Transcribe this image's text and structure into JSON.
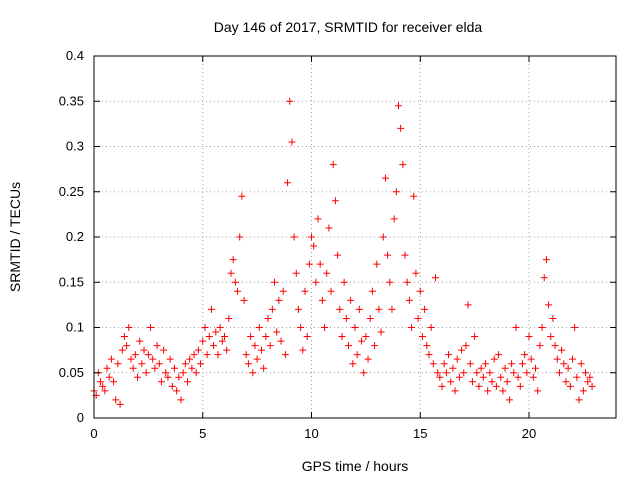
{
  "chart_data": {
    "type": "scatter",
    "title": "Day 146 of 2017, SRMTID for receiver elda",
    "xlabel": "GPS time / hours",
    "ylabel": "SRMTID / TECUs",
    "xlim": [
      0,
      24
    ],
    "ylim": [
      0,
      0.4
    ],
    "x_ticks": [
      0,
      5,
      10,
      15,
      20
    ],
    "x_tick_labels": [
      "0",
      "5",
      "10",
      "15",
      "20"
    ],
    "y_ticks": [
      0,
      0.05,
      0.1,
      0.15,
      0.2,
      0.25,
      0.3,
      0.35,
      0.4
    ],
    "y_tick_labels": [
      "0",
      "0.05",
      "0.1",
      "0.15",
      "0.2",
      "0.25",
      "0.3",
      "0.35",
      "0.4"
    ],
    "grid": true,
    "marker": "+",
    "color": "#ff0000",
    "series": [
      {
        "name": "SRMTID",
        "points": [
          [
            0.0,
            0.03
          ],
          [
            0.1,
            0.025
          ],
          [
            0.2,
            0.05
          ],
          [
            0.3,
            0.04
          ],
          [
            0.4,
            0.035
          ],
          [
            0.5,
            0.03
          ],
          [
            0.6,
            0.055
          ],
          [
            0.7,
            0.045
          ],
          [
            0.8,
            0.065
          ],
          [
            0.9,
            0.04
          ],
          [
            1.0,
            0.02
          ],
          [
            1.1,
            0.06
          ],
          [
            1.2,
            0.015
          ],
          [
            1.3,
            0.075
          ],
          [
            1.4,
            0.09
          ],
          [
            1.5,
            0.08
          ],
          [
            1.6,
            0.1
          ],
          [
            1.7,
            0.065
          ],
          [
            1.8,
            0.055
          ],
          [
            1.9,
            0.07
          ],
          [
            2.0,
            0.045
          ],
          [
            2.1,
            0.085
          ],
          [
            2.2,
            0.06
          ],
          [
            2.3,
            0.075
          ],
          [
            2.4,
            0.05
          ],
          [
            2.5,
            0.07
          ],
          [
            2.6,
            0.1
          ],
          [
            2.7,
            0.065
          ],
          [
            2.8,
            0.055
          ],
          [
            2.9,
            0.08
          ],
          [
            3.0,
            0.06
          ],
          [
            3.1,
            0.04
          ],
          [
            3.2,
            0.075
          ],
          [
            3.3,
            0.05
          ],
          [
            3.4,
            0.045
          ],
          [
            3.5,
            0.065
          ],
          [
            3.6,
            0.035
          ],
          [
            3.7,
            0.055
          ],
          [
            3.8,
            0.03
          ],
          [
            3.9,
            0.045
          ],
          [
            4.0,
            0.02
          ],
          [
            4.1,
            0.05
          ],
          [
            4.2,
            0.06
          ],
          [
            4.3,
            0.04
          ],
          [
            4.4,
            0.065
          ],
          [
            4.5,
            0.055
          ],
          [
            4.6,
            0.07
          ],
          [
            4.7,
            0.05
          ],
          [
            4.8,
            0.075
          ],
          [
            4.9,
            0.06
          ],
          [
            5.0,
            0.085
          ],
          [
            5.1,
            0.1
          ],
          [
            5.2,
            0.07
          ],
          [
            5.3,
            0.09
          ],
          [
            5.4,
            0.12
          ],
          [
            5.5,
            0.08
          ],
          [
            5.6,
            0.095
          ],
          [
            5.7,
            0.07
          ],
          [
            5.8,
            0.1
          ],
          [
            5.9,
            0.085
          ],
          [
            6.0,
            0.09
          ],
          [
            6.1,
            0.075
          ],
          [
            6.2,
            0.11
          ],
          [
            6.3,
            0.16
          ],
          [
            6.4,
            0.175
          ],
          [
            6.5,
            0.15
          ],
          [
            6.6,
            0.14
          ],
          [
            6.7,
            0.2
          ],
          [
            6.8,
            0.245
          ],
          [
            6.9,
            0.13
          ],
          [
            7.0,
            0.07
          ],
          [
            7.1,
            0.06
          ],
          [
            7.2,
            0.09
          ],
          [
            7.3,
            0.05
          ],
          [
            7.4,
            0.08
          ],
          [
            7.5,
            0.065
          ],
          [
            7.6,
            0.1
          ],
          [
            7.7,
            0.075
          ],
          [
            7.8,
            0.055
          ],
          [
            7.9,
            0.09
          ],
          [
            8.0,
            0.11
          ],
          [
            8.1,
            0.08
          ],
          [
            8.2,
            0.12
          ],
          [
            8.3,
            0.15
          ],
          [
            8.4,
            0.095
          ],
          [
            8.5,
            0.13
          ],
          [
            8.6,
            0.085
          ],
          [
            8.7,
            0.14
          ],
          [
            8.8,
            0.07
          ],
          [
            8.9,
            0.26
          ],
          [
            9.0,
            0.35
          ],
          [
            9.1,
            0.305
          ],
          [
            9.2,
            0.2
          ],
          [
            9.3,
            0.16
          ],
          [
            9.4,
            0.12
          ],
          [
            9.5,
            0.1
          ],
          [
            9.6,
            0.075
          ],
          [
            9.7,
            0.14
          ],
          [
            9.8,
            0.09
          ],
          [
            9.9,
            0.17
          ],
          [
            10.0,
            0.2
          ],
          [
            10.1,
            0.19
          ],
          [
            10.2,
            0.15
          ],
          [
            10.3,
            0.22
          ],
          [
            10.4,
            0.17
          ],
          [
            10.5,
            0.13
          ],
          [
            10.6,
            0.1
          ],
          [
            10.7,
            0.16
          ],
          [
            10.8,
            0.21
          ],
          [
            10.9,
            0.14
          ],
          [
            11.0,
            0.28
          ],
          [
            11.1,
            0.24
          ],
          [
            11.2,
            0.18
          ],
          [
            11.3,
            0.12
          ],
          [
            11.4,
            0.09
          ],
          [
            11.5,
            0.15
          ],
          [
            11.6,
            0.11
          ],
          [
            11.7,
            0.08
          ],
          [
            11.8,
            0.13
          ],
          [
            11.9,
            0.06
          ],
          [
            12.0,
            0.1
          ],
          [
            12.1,
            0.07
          ],
          [
            12.2,
            0.12
          ],
          [
            12.3,
            0.085
          ],
          [
            12.4,
            0.05
          ],
          [
            12.5,
            0.09
          ],
          [
            12.6,
            0.065
          ],
          [
            12.7,
            0.11
          ],
          [
            12.8,
            0.14
          ],
          [
            12.9,
            0.08
          ],
          [
            13.0,
            0.17
          ],
          [
            13.1,
            0.12
          ],
          [
            13.2,
            0.095
          ],
          [
            13.3,
            0.2
          ],
          [
            13.4,
            0.265
          ],
          [
            13.5,
            0.18
          ],
          [
            13.6,
            0.15
          ],
          [
            13.7,
            0.12
          ],
          [
            13.8,
            0.22
          ],
          [
            13.9,
            0.25
          ],
          [
            14.0,
            0.345
          ],
          [
            14.1,
            0.32
          ],
          [
            14.2,
            0.28
          ],
          [
            14.3,
            0.18
          ],
          [
            14.4,
            0.15
          ],
          [
            14.5,
            0.13
          ],
          [
            14.6,
            0.1
          ],
          [
            14.7,
            0.245
          ],
          [
            14.8,
            0.16
          ],
          [
            14.9,
            0.11
          ],
          [
            15.0,
            0.14
          ],
          [
            15.1,
            0.09
          ],
          [
            15.2,
            0.12
          ],
          [
            15.3,
            0.08
          ],
          [
            15.4,
            0.07
          ],
          [
            15.5,
            0.1
          ],
          [
            15.6,
            0.06
          ],
          [
            15.7,
            0.155
          ],
          [
            15.8,
            0.05
          ],
          [
            15.9,
            0.045
          ],
          [
            16.0,
            0.035
          ],
          [
            16.1,
            0.06
          ],
          [
            16.2,
            0.05
          ],
          [
            16.3,
            0.07
          ],
          [
            16.4,
            0.04
          ],
          [
            16.5,
            0.055
          ],
          [
            16.6,
            0.03
          ],
          [
            16.7,
            0.065
          ],
          [
            16.8,
            0.045
          ],
          [
            16.9,
            0.075
          ],
          [
            17.0,
            0.05
          ],
          [
            17.1,
            0.08
          ],
          [
            17.2,
            0.125
          ],
          [
            17.3,
            0.06
          ],
          [
            17.4,
            0.04
          ],
          [
            17.5,
            0.09
          ],
          [
            17.6,
            0.05
          ],
          [
            17.7,
            0.035
          ],
          [
            17.8,
            0.055
          ],
          [
            17.9,
            0.045
          ],
          [
            18.0,
            0.06
          ],
          [
            18.1,
            0.03
          ],
          [
            18.2,
            0.05
          ],
          [
            18.3,
            0.04
          ],
          [
            18.4,
            0.065
          ],
          [
            18.5,
            0.035
          ],
          [
            18.6,
            0.07
          ],
          [
            18.7,
            0.045
          ],
          [
            18.8,
            0.03
          ],
          [
            18.9,
            0.055
          ],
          [
            19.0,
            0.04
          ],
          [
            19.1,
            0.02
          ],
          [
            19.2,
            0.06
          ],
          [
            19.3,
            0.05
          ],
          [
            19.4,
            0.1
          ],
          [
            19.5,
            0.045
          ],
          [
            19.6,
            0.035
          ],
          [
            19.7,
            0.06
          ],
          [
            19.8,
            0.07
          ],
          [
            19.9,
            0.05
          ],
          [
            20.0,
            0.09
          ],
          [
            20.1,
            0.065
          ],
          [
            20.2,
            0.045
          ],
          [
            20.3,
            0.055
          ],
          [
            20.4,
            0.03
          ],
          [
            20.5,
            0.08
          ],
          [
            20.6,
            0.1
          ],
          [
            20.7,
            0.155
          ],
          [
            20.8,
            0.175
          ],
          [
            20.9,
            0.125
          ],
          [
            21.0,
            0.09
          ],
          [
            21.1,
            0.11
          ],
          [
            21.2,
            0.08
          ],
          [
            21.3,
            0.065
          ],
          [
            21.4,
            0.05
          ],
          [
            21.5,
            0.075
          ],
          [
            21.6,
            0.06
          ],
          [
            21.7,
            0.04
          ],
          [
            21.8,
            0.055
          ],
          [
            21.9,
            0.035
          ],
          [
            22.0,
            0.065
          ],
          [
            22.1,
            0.1
          ],
          [
            22.2,
            0.045
          ],
          [
            22.3,
            0.02
          ],
          [
            22.4,
            0.06
          ],
          [
            22.5,
            0.03
          ],
          [
            22.6,
            0.05
          ],
          [
            22.7,
            0.04
          ],
          [
            22.8,
            0.045
          ],
          [
            22.9,
            0.035
          ]
        ]
      }
    ]
  }
}
